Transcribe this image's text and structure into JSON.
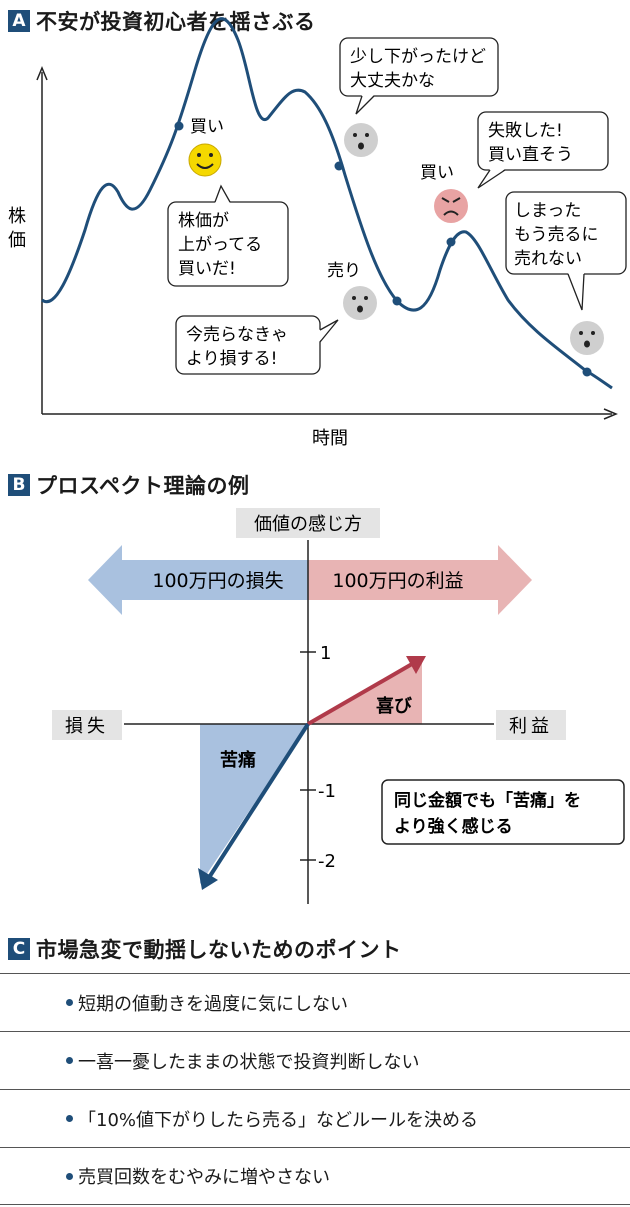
{
  "section_a": {
    "badge": "A",
    "title": "不安が投資初心者を揺さぶる",
    "y_axis_label": "株価",
    "x_axis_label": "時間",
    "buy_label_1": "買い",
    "buy_bubble": [
      "株価が",
      "上がってる",
      "買いだ!"
    ],
    "dip_bubble": [
      "少し下がったけど",
      "大丈夫かな"
    ],
    "sell_label": "売り",
    "sell_bubble": [
      "今売らなきゃ",
      "より損する!"
    ],
    "buy_label_2": "買い",
    "rebuy_bubble": [
      "失敗した!",
      "買い直そう"
    ],
    "regret_bubble": [
      "しまった",
      "もう売るに",
      "売れない"
    ]
  },
  "section_b": {
    "badge": "B",
    "title": "プロスペクト理論の例",
    "value_axis_label": "価値の感じ方",
    "loss_arrow_label": "100万円の損失",
    "gain_arrow_label": "100万円の利益",
    "loss_label": "損失",
    "gain_label": "利益",
    "joy_label": "喜び",
    "pain_label": "苦痛",
    "ticks": [
      "1",
      "-1",
      "-2"
    ],
    "note": [
      "同じ金額でも「苦痛」を",
      "より強く感じる"
    ],
    "colors": {
      "navy": "#1f4e79",
      "loss_fill": "#a9c1df",
      "gain_fill": "#e8b4b4",
      "gain_line": "#b03a4a"
    }
  },
  "section_c": {
    "badge": "C",
    "title": "市場急変で動揺しないためのポイント",
    "tips": [
      "短期の値動きを過度に気にしない",
      "一喜一憂したままの状態で投資判断しない",
      "「10%値下がりしたら売る」などルールを決める",
      "売買回数をむやみに増やさない"
    ]
  }
}
